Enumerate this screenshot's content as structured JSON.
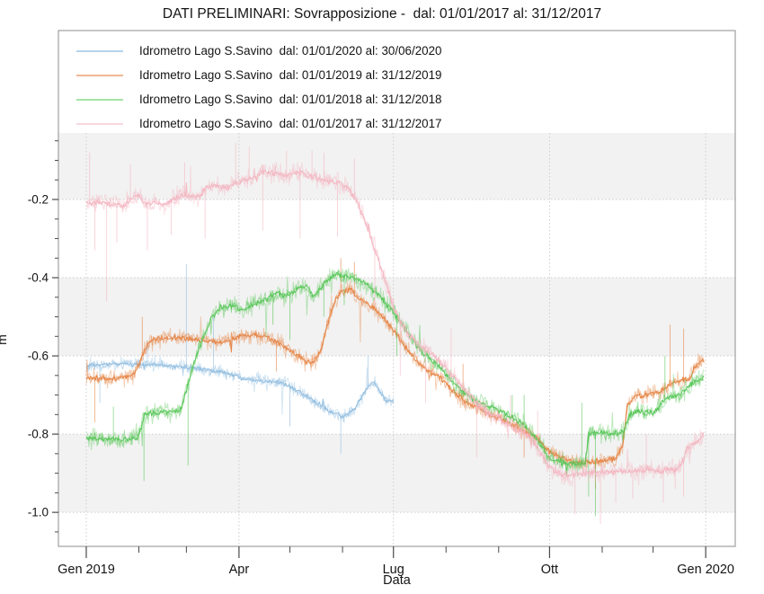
{
  "title": "DATI PRELIMINARI: Sovrapposizione -  dal: 01/01/2017 al: 31/12/2017",
  "chart_data": {
    "type": "line",
    "title": "DATI PRELIMINARI: Sovrapposizione -  dal: 01/01/2017 al: 31/12/2017",
    "xlabel": "Data",
    "ylabel": "m",
    "legend_position": "top-left",
    "grid": "dotted major gridlines, alternating gray/white horizontal bands",
    "colors": {
      "band_gray": "#f2f2f2",
      "band_white": "#ffffff",
      "gridline": "#cdcdcd",
      "frame": "#8c8c8c",
      "tick": "#4a4a4a",
      "text": "#141414"
    },
    "x_axis": {
      "unit": "day of year, Gen 2019 .. Gen 2020",
      "range_days": [
        -16.4,
        382.4
      ],
      "ticks": [
        {
          "day": 0,
          "label": "Gen 2019"
        },
        {
          "day": 90,
          "label": "Apr"
        },
        {
          "day": 181,
          "label": "Lug"
        },
        {
          "day": 273,
          "label": "Ott"
        },
        {
          "day": 365,
          "label": "Gen 2020"
        }
      ],
      "minor_tick_days": [
        31,
        59,
        120,
        151,
        212,
        243,
        304,
        334
      ]
    },
    "y_axis": {
      "unit": "m",
      "range": [
        -1.087,
        -0.03
      ],
      "ticks": [
        {
          "value": -0.2,
          "label": "-0.2"
        },
        {
          "value": -0.4,
          "label": "-0.4"
        },
        {
          "value": -0.6,
          "label": "-0.6"
        },
        {
          "value": -0.8,
          "label": "-0.8"
        },
        {
          "value": -1.0,
          "label": "-1.0"
        }
      ],
      "minor_step": 0.05
    },
    "series": [
      {
        "name": "Idrometro Lago S.Savino  dal: 01/01/2020 al: 30/06/2020",
        "color": "#8fbcdf",
        "legend_color": "#b5d3ea",
        "noise": 0.014,
        "points": [
          [
            0,
            -0.625
          ],
          [
            20,
            -0.62
          ],
          [
            40,
            -0.623
          ],
          [
            58,
            -0.628
          ],
          [
            80,
            -0.64
          ],
          [
            90,
            -0.655
          ],
          [
            100,
            -0.662
          ],
          [
            110,
            -0.665
          ],
          [
            118,
            -0.672
          ],
          [
            125,
            -0.69
          ],
          [
            133,
            -0.712
          ],
          [
            140,
            -0.732
          ],
          [
            147,
            -0.75
          ],
          [
            152,
            -0.756
          ],
          [
            158,
            -0.736
          ],
          [
            163,
            -0.7
          ],
          [
            167,
            -0.672
          ],
          [
            170,
            -0.668
          ],
          [
            174,
            -0.7
          ],
          [
            177,
            -0.714
          ],
          [
            181,
            -0.714
          ]
        ],
        "spikes": [
          [
            8,
            -0.72
          ],
          [
            36,
            -0.56
          ],
          [
            59,
            -0.365
          ],
          [
            75,
            -0.5
          ],
          [
            120,
            -0.78
          ],
          [
            150,
            -0.85
          ],
          [
            166,
            -0.6
          ]
        ]
      },
      {
        "name": "Idrometro Lago S.Savino  dal: 01/01/2019 al: 31/12/2019",
        "color": "#e6813f",
        "legend_color": "#f2b693",
        "noise": 0.018,
        "points": [
          [
            0,
            -0.655
          ],
          [
            12,
            -0.66
          ],
          [
            22,
            -0.655
          ],
          [
            28,
            -0.648
          ],
          [
            32,
            -0.61
          ],
          [
            36,
            -0.572
          ],
          [
            40,
            -0.556
          ],
          [
            55,
            -0.553
          ],
          [
            68,
            -0.56
          ],
          [
            80,
            -0.565
          ],
          [
            90,
            -0.55
          ],
          [
            100,
            -0.546
          ],
          [
            108,
            -0.556
          ],
          [
            116,
            -0.572
          ],
          [
            124,
            -0.598
          ],
          [
            130,
            -0.615
          ],
          [
            134,
            -0.618
          ],
          [
            138,
            -0.588
          ],
          [
            141,
            -0.54
          ],
          [
            144,
            -0.49
          ],
          [
            147,
            -0.452
          ],
          [
            151,
            -0.436
          ],
          [
            156,
            -0.43
          ],
          [
            160,
            -0.45
          ],
          [
            165,
            -0.465
          ],
          [
            170,
            -0.48
          ],
          [
            175,
            -0.502
          ],
          [
            181,
            -0.535
          ],
          [
            188,
            -0.576
          ],
          [
            195,
            -0.615
          ],
          [
            202,
            -0.64
          ],
          [
            209,
            -0.657
          ],
          [
            216,
            -0.69
          ],
          [
            223,
            -0.716
          ],
          [
            230,
            -0.732
          ],
          [
            238,
            -0.75
          ],
          [
            248,
            -0.77
          ],
          [
            258,
            -0.792
          ],
          [
            266,
            -0.812
          ],
          [
            273,
            -0.845
          ],
          [
            278,
            -0.857
          ],
          [
            285,
            -0.868
          ],
          [
            293,
            -0.875
          ],
          [
            300,
            -0.87
          ],
          [
            306,
            -0.866
          ],
          [
            312,
            -0.862
          ],
          [
            316,
            -0.83
          ],
          [
            319,
            -0.725
          ],
          [
            323,
            -0.705
          ],
          [
            330,
            -0.7
          ],
          [
            338,
            -0.692
          ],
          [
            344,
            -0.672
          ],
          [
            351,
            -0.662
          ],
          [
            356,
            -0.657
          ],
          [
            358,
            -0.632
          ],
          [
            361,
            -0.617
          ],
          [
            364,
            -0.613
          ]
        ],
        "spikes": [
          [
            5,
            -0.77
          ],
          [
            33,
            -0.5
          ],
          [
            112,
            -0.64
          ],
          [
            150,
            -0.35
          ],
          [
            158,
            -0.36
          ],
          [
            222,
            -0.62
          ],
          [
            258,
            -0.86
          ],
          [
            300,
            -0.94
          ],
          [
            344,
            -0.52
          ],
          [
            352,
            -0.53
          ]
        ]
      },
      {
        "name": "Idrometro Lago S.Savino  dal: 01/01/2018 al: 31/12/2018",
        "color": "#54c654",
        "legend_color": "#a6e3a6",
        "noise": 0.02,
        "points": [
          [
            0,
            -0.81
          ],
          [
            12,
            -0.812
          ],
          [
            22,
            -0.815
          ],
          [
            30,
            -0.808
          ],
          [
            32,
            -0.79
          ],
          [
            34,
            -0.748
          ],
          [
            42,
            -0.745
          ],
          [
            50,
            -0.742
          ],
          [
            56,
            -0.738
          ],
          [
            58,
            -0.7
          ],
          [
            62,
            -0.64
          ],
          [
            66,
            -0.585
          ],
          [
            70,
            -0.54
          ],
          [
            74,
            -0.502
          ],
          [
            78,
            -0.478
          ],
          [
            85,
            -0.472
          ],
          [
            92,
            -0.482
          ],
          [
            98,
            -0.47
          ],
          [
            105,
            -0.456
          ],
          [
            112,
            -0.44
          ],
          [
            118,
            -0.447
          ],
          [
            124,
            -0.432
          ],
          [
            130,
            -0.42
          ],
          [
            134,
            -0.447
          ],
          [
            138,
            -0.427
          ],
          [
            143,
            -0.402
          ],
          [
            148,
            -0.392
          ],
          [
            153,
            -0.397
          ],
          [
            158,
            -0.402
          ],
          [
            163,
            -0.412
          ],
          [
            168,
            -0.427
          ],
          [
            174,
            -0.452
          ],
          [
            181,
            -0.486
          ],
          [
            188,
            -0.53
          ],
          [
            195,
            -0.576
          ],
          [
            202,
            -0.606
          ],
          [
            209,
            -0.632
          ],
          [
            216,
            -0.666
          ],
          [
            223,
            -0.697
          ],
          [
            230,
            -0.716
          ],
          [
            240,
            -0.732
          ],
          [
            250,
            -0.756
          ],
          [
            258,
            -0.776
          ],
          [
            266,
            -0.816
          ],
          [
            273,
            -0.862
          ],
          [
            280,
            -0.872
          ],
          [
            288,
            -0.878
          ],
          [
            294,
            -0.875
          ],
          [
            296,
            -0.8
          ],
          [
            303,
            -0.796
          ],
          [
            310,
            -0.8
          ],
          [
            317,
            -0.794
          ],
          [
            320,
            -0.75
          ],
          [
            327,
            -0.742
          ],
          [
            334,
            -0.746
          ],
          [
            339,
            -0.72
          ],
          [
            343,
            -0.703
          ],
          [
            350,
            -0.7
          ],
          [
            354,
            -0.682
          ],
          [
            357,
            -0.67
          ],
          [
            360,
            -0.662
          ],
          [
            364,
            -0.655
          ]
        ],
        "spikes": [
          [
            16,
            -0.73
          ],
          [
            34,
            -0.92
          ],
          [
            60,
            -0.88
          ],
          [
            110,
            -0.52
          ],
          [
            120,
            -0.56
          ],
          [
            140,
            -0.5
          ],
          [
            152,
            -0.47
          ],
          [
            183,
            -0.6
          ],
          [
            251,
            -0.7
          ],
          [
            258,
            -0.7
          ],
          [
            292,
            -0.72
          ],
          [
            296,
            -0.96
          ],
          [
            300,
            -1.01
          ],
          [
            341,
            -0.6
          ]
        ]
      },
      {
        "name": "Idrometro Lago S.Savino  dal: 01/01/2017 al: 31/12/2017",
        "color": "#f4b4bf",
        "legend_color": "#f7d9de",
        "noise": 0.02,
        "points": [
          [
            0,
            -0.212
          ],
          [
            8,
            -0.205
          ],
          [
            15,
            -0.212
          ],
          [
            22,
            -0.215
          ],
          [
            27,
            -0.198
          ],
          [
            31,
            -0.192
          ],
          [
            35,
            -0.212
          ],
          [
            41,
            -0.208
          ],
          [
            46,
            -0.214
          ],
          [
            51,
            -0.202
          ],
          [
            56,
            -0.188
          ],
          [
            62,
            -0.194
          ],
          [
            67,
            -0.19
          ],
          [
            71,
            -0.168
          ],
          [
            77,
            -0.165
          ],
          [
            83,
            -0.17
          ],
          [
            89,
            -0.155
          ],
          [
            95,
            -0.15
          ],
          [
            100,
            -0.138
          ],
          [
            104,
            -0.128
          ],
          [
            109,
            -0.132
          ],
          [
            114,
            -0.136
          ],
          [
            119,
            -0.14
          ],
          [
            123,
            -0.133
          ],
          [
            128,
            -0.133
          ],
          [
            133,
            -0.142
          ],
          [
            138,
            -0.148
          ],
          [
            142,
            -0.152
          ],
          [
            146,
            -0.154
          ],
          [
            150,
            -0.158
          ],
          [
            153,
            -0.165
          ],
          [
            156,
            -0.18
          ],
          [
            160,
            -0.21
          ],
          [
            164,
            -0.25
          ],
          [
            168,
            -0.3
          ],
          [
            172,
            -0.35
          ],
          [
            175,
            -0.39
          ],
          [
            178,
            -0.432
          ],
          [
            181,
            -0.475
          ],
          [
            185,
            -0.51
          ],
          [
            190,
            -0.545
          ],
          [
            196,
            -0.572
          ],
          [
            202,
            -0.592
          ],
          [
            209,
            -0.616
          ],
          [
            216,
            -0.65
          ],
          [
            223,
            -0.685
          ],
          [
            230,
            -0.72
          ],
          [
            237,
            -0.745
          ],
          [
            244,
            -0.762
          ],
          [
            252,
            -0.786
          ],
          [
            260,
            -0.802
          ],
          [
            266,
            -0.836
          ],
          [
            271,
            -0.872
          ],
          [
            276,
            -0.896
          ],
          [
            283,
            -0.906
          ],
          [
            290,
            -0.902
          ],
          [
            298,
            -0.896
          ],
          [
            306,
            -0.897
          ],
          [
            314,
            -0.894
          ],
          [
            322,
            -0.896
          ],
          [
            330,
            -0.892
          ],
          [
            338,
            -0.895
          ],
          [
            345,
            -0.89
          ],
          [
            350,
            -0.884
          ],
          [
            352,
            -0.862
          ],
          [
            354,
            -0.832
          ],
          [
            358,
            -0.822
          ],
          [
            361,
            -0.816
          ],
          [
            363,
            -0.806
          ],
          [
            364,
            -0.795
          ]
        ],
        "spikes": [
          [
            2,
            -0.08
          ],
          [
            5,
            -0.33
          ],
          [
            12,
            -0.46
          ],
          [
            18,
            -0.31
          ],
          [
            26,
            -0.11
          ],
          [
            36,
            -0.33
          ],
          [
            50,
            -0.29
          ],
          [
            58,
            -0.105
          ],
          [
            70,
            -0.3
          ],
          [
            88,
            -0.055
          ],
          [
            96,
            -0.065
          ],
          [
            104,
            -0.28
          ],
          [
            118,
            -0.075
          ],
          [
            126,
            -0.3
          ],
          [
            133,
            -0.075
          ],
          [
            140,
            -0.08
          ],
          [
            148,
            -0.295
          ],
          [
            158,
            -0.095
          ],
          [
            170,
            -0.47
          ],
          [
            185,
            -0.65
          ],
          [
            200,
            -0.72
          ],
          [
            215,
            -0.53
          ],
          [
            230,
            -0.86
          ],
          [
            250,
            -0.7
          ],
          [
            266,
            -0.74
          ],
          [
            288,
            -1.005
          ],
          [
            303,
            -1.03
          ],
          [
            312,
            -0.975
          ],
          [
            322,
            -0.965
          ],
          [
            330,
            -0.8
          ],
          [
            340,
            -0.975
          ],
          [
            347,
            -0.94
          ],
          [
            352,
            -0.96
          ]
        ]
      }
    ]
  }
}
